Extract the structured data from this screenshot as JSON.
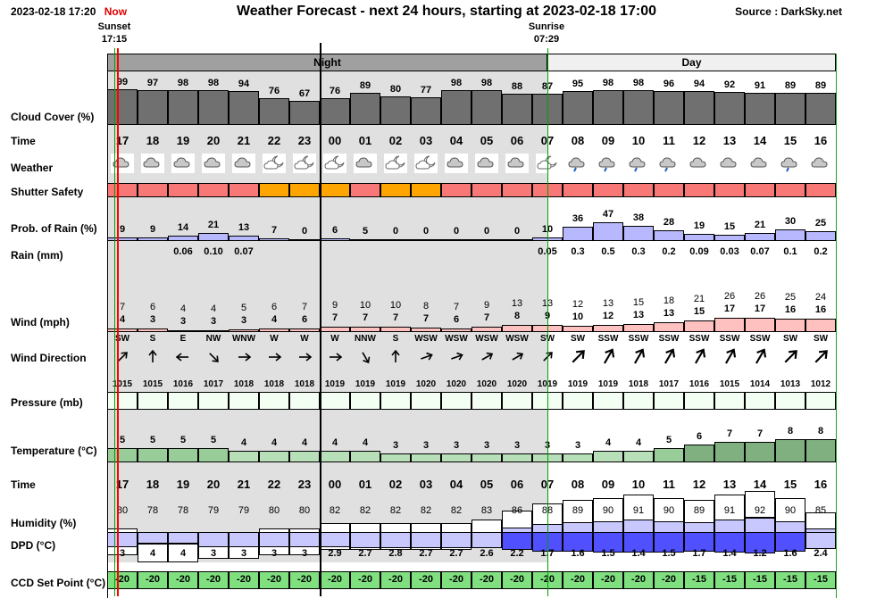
{
  "header": {
    "datetime": "2023-02-18 17:20",
    "now": "Now",
    "title": "Weather Forecast - next 24 hours, starting at 2023-02-18 17:00",
    "source": "Source : DarkSky.net"
  },
  "sun": {
    "sunset_label": "Sunset",
    "sunset_time": "17:15",
    "sunrise_label": "Sunrise",
    "sunrise_time": "07:29"
  },
  "bands": {
    "night": "Night",
    "day": "Day"
  },
  "labels": {
    "cloud_cover": "Cloud Cover (%)",
    "time": "Time",
    "weather": "Weather",
    "shutter": "Shutter Safety",
    "prob_rain": "Prob. of Rain (%)",
    "rain": "Rain (mm)",
    "wind": "Wind (mph)",
    "wind_dir": "Wind Direction",
    "pressure": "Pressure (mb)",
    "temperature": "Temperature (°C)",
    "time2": "Time",
    "humidity": "Humidity (%)",
    "dpd": "DPD (°C)",
    "ccd": "CCD Set Point (°C)"
  },
  "colors": {
    "night_band": "#a0a0a0",
    "night_bg": "#e0e0e0",
    "day_band": "#f0f0f0",
    "cloud": "#707070",
    "shutter_unsafe": "#f87878",
    "shutter_marginal": "#ffa500",
    "rain_bar": "#b8b8ff",
    "wind_bar": "#ffc0c0",
    "temp_bar": "#90c090",
    "humidity_bar": "#c8c8ff",
    "dpd_bar": "#5050ff",
    "ccd_bg": "#80e080",
    "now_line": "#ff0000",
    "sunset_line": "#00a000"
  },
  "hours": [
    "17",
    "18",
    "19",
    "20",
    "21",
    "22",
    "23",
    "00",
    "01",
    "02",
    "03",
    "04",
    "05",
    "06",
    "07",
    "08",
    "09",
    "10",
    "11",
    "12",
    "13",
    "14",
    "15",
    "16"
  ],
  "cloud_cover": [
    99,
    97,
    98,
    98,
    94,
    76,
    67,
    76,
    89,
    80,
    77,
    98,
    98,
    88,
    87,
    95,
    98,
    98,
    96,
    94,
    92,
    91,
    89,
    89
  ],
  "weather_icons": [
    "cloud-icon",
    "cloud-icon",
    "cloud-icon",
    "cloud-icon",
    "cloud-icon",
    "partly-cloudy-night-icon",
    "partly-cloudy-night-icon",
    "partly-cloudy-night-icon",
    "cloud-icon",
    "partly-cloudy-night-icon",
    "partly-cloudy-night-icon",
    "cloud-icon",
    "cloud-icon",
    "cloud-icon",
    "partly-cloudy-night-icon",
    "rain-icon",
    "rain-icon",
    "rain-icon",
    "rain-icon",
    "cloud-icon",
    "cloud-icon",
    "cloud-icon",
    "rain-icon",
    "cloud-icon"
  ],
  "shutter": [
    "unsafe",
    "unsafe",
    "unsafe",
    "unsafe",
    "unsafe",
    "marginal",
    "marginal",
    "marginal",
    "unsafe",
    "marginal",
    "marginal",
    "unsafe",
    "unsafe",
    "unsafe",
    "unsafe",
    "unsafe",
    "unsafe",
    "unsafe",
    "unsafe",
    "unsafe",
    "unsafe",
    "unsafe",
    "unsafe",
    "unsafe"
  ],
  "prob_rain": [
    9,
    9,
    14,
    21,
    13,
    7,
    0,
    6,
    5,
    0,
    0,
    0,
    0,
    0,
    10,
    36,
    47,
    38,
    28,
    19,
    15,
    21,
    30,
    25
  ],
  "rain_mm": [
    "",
    "",
    "0.06",
    "0.10",
    "0.07",
    "",
    "",
    "",
    "",
    "",
    "",
    "",
    "",
    "",
    "0.05",
    "0.3",
    "0.5",
    "0.3",
    "0.2",
    "0.09",
    "0.03",
    "0.07",
    "0.1",
    "0.2"
  ],
  "wind_gust": [
    7,
    6,
    4,
    4,
    5,
    6,
    7,
    9,
    10,
    10,
    8,
    7,
    9,
    13,
    13,
    12,
    13,
    15,
    18,
    21,
    26,
    26,
    25,
    24
  ],
  "wind_speed": [
    4,
    3,
    3,
    3,
    3,
    4,
    6,
    7,
    7,
    7,
    7,
    6,
    7,
    8,
    9,
    10,
    12,
    13,
    13,
    15,
    17,
    17,
    16,
    16
  ],
  "wind_dir": [
    "SW",
    "S",
    "E",
    "NW",
    "WNW",
    "W",
    "W",
    "W",
    "NNW",
    "S",
    "WSW",
    "WSW",
    "WSW",
    "WSW",
    "SW",
    "SW",
    "SSW",
    "SSW",
    "SSW",
    "SSW",
    "SSW",
    "SSW",
    "SW",
    "SW"
  ],
  "wind_arrow_angle": [
    45,
    0,
    270,
    135,
    90,
    90,
    90,
    90,
    150,
    0,
    70,
    70,
    60,
    60,
    45,
    45,
    30,
    30,
    30,
    30,
    30,
    30,
    45,
    45
  ],
  "pressure": [
    1015,
    1015,
    1016,
    1017,
    1018,
    1018,
    1018,
    1019,
    1019,
    1019,
    1020,
    1020,
    1020,
    1020,
    1019,
    1019,
    1019,
    1018,
    1017,
    1016,
    1015,
    1014,
    1013,
    1012
  ],
  "temperature": [
    5,
    5,
    5,
    5,
    4,
    4,
    4,
    4,
    4,
    3,
    3,
    3,
    3,
    3,
    3,
    3,
    4,
    4,
    5,
    6,
    7,
    7,
    8,
    8
  ],
  "humidity": [
    80,
    78,
    78,
    79,
    79,
    80,
    80,
    82,
    82,
    82,
    82,
    82,
    83,
    86,
    88,
    89,
    90,
    91,
    90,
    89,
    91,
    92,
    90,
    85
  ],
  "dpd": [
    "3",
    "4",
    "4",
    "3",
    "3",
    "3",
    "3",
    "2.9",
    "2.7",
    "2.8",
    "2.7",
    "2.7",
    "2.6",
    "2.2",
    "1.7",
    "1.6",
    "1.5",
    "1.4",
    "1.5",
    "1.7",
    "1.4",
    "1.2",
    "1.6",
    "2.4"
  ],
  "ccd": [
    -20,
    -20,
    -20,
    -20,
    -20,
    -20,
    -20,
    -20,
    -20,
    -20,
    -20,
    -20,
    -20,
    -20,
    -20,
    -20,
    -20,
    -20,
    -20,
    -15,
    -15,
    -15,
    -15,
    -15
  ]
}
